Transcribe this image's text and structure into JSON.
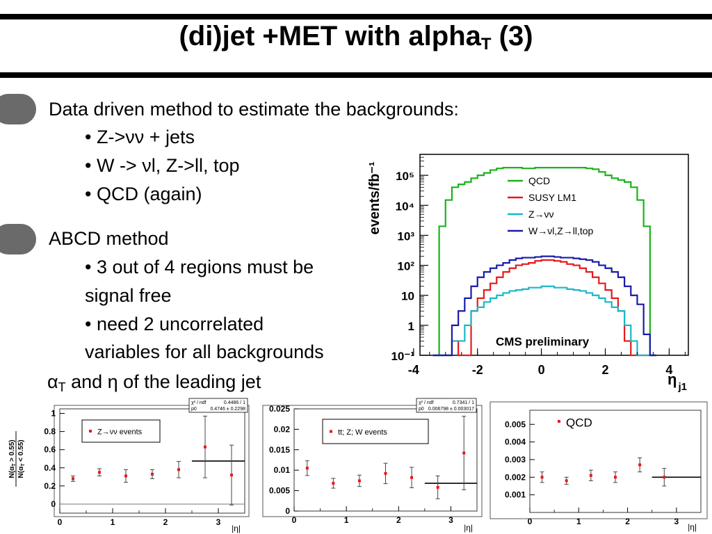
{
  "slide": {
    "title_main": "(di)jet +MET with alpha",
    "title_sub": "T",
    "title_tail": " (3)",
    "line1": "Data driven method to estimate the backgrounds:",
    "b1": "• Z->νν + jets",
    "b2": "• W -> νl, Z->ll, top",
    "b3": "• QCD (again)",
    "line2": "ABCD method",
    "b4a": "• 3 out of 4 regions must be",
    "b4b": "signal free",
    "b5a": "• need 2 uncorrelated",
    "b5b": "variables for all backgrounds",
    "b6_alpha": "α",
    "b6_sub": "T",
    "b6_rest": " and η of the leading jet"
  },
  "chart_data": [
    {
      "type": "line",
      "style": "step histogram",
      "ylabel": "events/fb⁻¹",
      "xlabel": "η",
      "xlabel_sub": "j1",
      "x_ticks": [
        "-4",
        "-2",
        "0",
        "2",
        "4"
      ],
      "y_ticks": [
        "10⁻¹",
        "1",
        "10",
        "10²",
        "10³",
        "10⁴",
        "10⁵"
      ],
      "y_scale": "log",
      "xlim": [
        -3.8,
        4.6
      ],
      "ylim": [
        0.1,
        500000
      ],
      "annotation": "CMS preliminary",
      "legend_position": "top-right",
      "bin_edges": [
        -3.4,
        -3.2,
        -3.0,
        -2.8,
        -2.6,
        -2.4,
        -2.2,
        -2.0,
        -1.8,
        -1.6,
        -1.4,
        -1.2,
        -1.0,
        -0.8,
        -0.6,
        -0.4,
        -0.2,
        0.0,
        0.2,
        0.4,
        0.6,
        0.8,
        1.0,
        1.2,
        1.4,
        1.6,
        1.8,
        2.0,
        2.2,
        2.4,
        2.6,
        2.8,
        3.0,
        3.2,
        3.4,
        3.6
      ],
      "series": [
        {
          "name": "QCD",
          "color": "#19b319",
          "values": [
            0.1,
            2000,
            15000,
            40000,
            50000,
            60000,
            80000,
            100000,
            120000,
            150000,
            170000,
            180000,
            180000,
            180000,
            170000,
            170000,
            180000,
            180000,
            180000,
            180000,
            180000,
            180000,
            180000,
            180000,
            170000,
            160000,
            130000,
            100000,
            80000,
            70000,
            60000,
            40000,
            15000,
            2000,
            0.1
          ]
        },
        {
          "name": "SUSY LM1",
          "color": "#e61a1a",
          "values": [
            0.1,
            0.1,
            0.1,
            0.3,
            0.1,
            0.1,
            3,
            8,
            15,
            25,
            40,
            60,
            80,
            100,
            110,
            120,
            140,
            150,
            150,
            140,
            130,
            110,
            100,
            80,
            60,
            40,
            25,
            15,
            8,
            3,
            0.3,
            0.1,
            0.1,
            0.1,
            0.1
          ]
        },
        {
          "name": "Z→νν",
          "color": "#1ab8c8",
          "values": [
            0.1,
            0.1,
            0.1,
            0.3,
            0.3,
            1,
            3,
            4,
            6,
            8,
            10,
            12,
            14,
            15,
            16,
            18,
            18,
            20,
            20,
            18,
            18,
            16,
            15,
            14,
            12,
            10,
            8,
            6,
            4,
            3,
            1,
            0.3,
            0.1,
            0.1,
            0.1
          ]
        },
        {
          "name": "W→νl,Z→ll,top",
          "color": "#1a1aaa",
          "values": [
            0.1,
            0.1,
            0.1,
            1,
            3,
            8,
            20,
            40,
            60,
            80,
            100,
            120,
            150,
            170,
            180,
            180,
            190,
            200,
            200,
            190,
            180,
            180,
            170,
            160,
            150,
            130,
            100,
            80,
            60,
            40,
            20,
            10,
            5,
            0.5,
            0.1
          ]
        }
      ]
    },
    {
      "type": "scatter",
      "xlabel": "|η|",
      "ylabel": "N(αT > 0.55) / N(αT < 0.55)",
      "ylabel_top": "N(α",
      "ylabel_top_sub": "T",
      "ylabel_top_rest": " > 0.55)",
      "ylabel_bot": "N(α",
      "ylabel_bot_sub": "T",
      "ylabel_bot_rest": " < 0.55)",
      "legend": "Z→νν events",
      "fit_label1": "χ² / ndf",
      "fit_val1": "0.4486 / 1",
      "fit_label2": "p0",
      "fit_val2": "0.4746 ± 0.2298",
      "x_ticks": [
        "0",
        "1",
        "2",
        "3"
      ],
      "y_ticks": [
        "0",
        "0.2",
        "0.4",
        "0.6",
        "0.8",
        "1"
      ],
      "xlim": [
        0,
        3.5
      ],
      "ylim": [
        -0.1,
        1.05
      ],
      "x": [
        0.25,
        0.75,
        1.25,
        1.75,
        2.25,
        2.75,
        3.25
      ],
      "y": [
        0.28,
        0.35,
        0.31,
        0.33,
        0.38,
        0.63,
        0.32
      ],
      "yerr": [
        0.03,
        0.04,
        0.07,
        0.05,
        0.09,
        0.34,
        0.33
      ],
      "fit_value": 0.4746,
      "fit_range": [
        2.5,
        3.5
      ],
      "color": "#e61a1a"
    },
    {
      "type": "scatter",
      "xlabel": "|η|",
      "legend": "tt; Z; W events",
      "fit_label1": "χ² / ndf",
      "fit_val1": "0.7341 / 1",
      "fit_label2": "p0",
      "fit_val2": "0.006798 ± 0.003017",
      "x_ticks": [
        "0",
        "1",
        "2",
        "3"
      ],
      "y_ticks": [
        "0",
        "0.005",
        "0.01",
        "0.015",
        "0.02",
        "0.025"
      ],
      "xlim": [
        0,
        3.5
      ],
      "ylim": [
        0,
        0.025
      ],
      "x": [
        0.25,
        0.75,
        1.25,
        1.75,
        2.25,
        2.75,
        3.25
      ],
      "y": [
        0.0105,
        0.0068,
        0.0074,
        0.0092,
        0.0082,
        0.0058,
        0.0142
      ],
      "yerr": [
        0.0018,
        0.0012,
        0.0014,
        0.0025,
        0.0025,
        0.0028,
        0.009
      ],
      "fit_value": 0.006798,
      "fit_range": [
        2.5,
        3.5
      ],
      "color": "#e61a1a"
    },
    {
      "type": "scatter",
      "xlabel": "|η|",
      "legend": "QCD",
      "x_ticks": [
        "0",
        "1",
        "2",
        "3"
      ],
      "y_ticks": [
        "0.001",
        "0.002",
        "0.003",
        "0.004",
        "0.005"
      ],
      "xlim": [
        0,
        3.5
      ],
      "ylim": [
        0,
        0.0058
      ],
      "x": [
        0.25,
        0.75,
        1.25,
        1.75,
        2.25,
        2.75
      ],
      "y": [
        0.002,
        0.0018,
        0.0021,
        0.002,
        0.0027,
        0.002
      ],
      "yerr": [
        0.0003,
        0.0002,
        0.0003,
        0.0003,
        0.0004,
        0.0005
      ],
      "fit_value": 0.002,
      "fit_range": [
        2.5,
        3.5
      ],
      "color": "#e61a1a"
    }
  ]
}
